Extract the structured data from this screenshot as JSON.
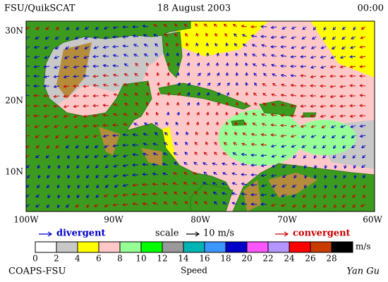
{
  "header": {
    "left": "FSU/QuikSCAT",
    "center": "18 August 2003",
    "right": "00:00"
  },
  "map": {
    "lat_labels": [
      "30N",
      "20N",
      "10N"
    ],
    "lon_labels": [
      "100W",
      "90W",
      "80W",
      "70W",
      "60W"
    ]
  },
  "legend": {
    "divergent": "divergent",
    "scale": "scale",
    "scale_value": "10 m/s",
    "convergent": "convergent"
  },
  "colorbar": {
    "ticks": [
      0,
      2,
      4,
      6,
      8,
      10,
      12,
      14,
      16,
      18,
      20,
      22,
      24,
      26,
      28
    ],
    "colors": [
      "#ffffff",
      "#c8c8c8",
      "#ffff00",
      "#ffc8c8",
      "#96ff96",
      "#00ff00",
      "#999999",
      "#00b4b4",
      "#3c96ff",
      "#0000c8",
      "#ff55ff",
      "#b496ff",
      "#ff0000",
      "#c83c00",
      "#000000"
    ],
    "unit": "m/s",
    "title": "Speed"
  },
  "footer": {
    "left": "COAPS-FSU",
    "right": "Yan Gu"
  }
}
